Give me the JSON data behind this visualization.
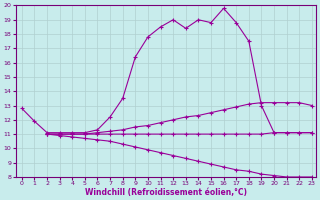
{
  "xlabel": "Windchill (Refroidissement éolien,°C)",
  "bg_color": "#c8ecec",
  "line_color": "#990099",
  "grid_color": "#b0d0d0",
  "xlim": [
    0,
    23
  ],
  "ylim": [
    8,
    20
  ],
  "xticks": [
    0,
    1,
    2,
    3,
    4,
    5,
    6,
    7,
    8,
    9,
    10,
    11,
    12,
    13,
    14,
    15,
    16,
    17,
    18,
    19,
    20,
    21,
    22,
    23
  ],
  "yticks": [
    8,
    9,
    10,
    11,
    12,
    13,
    14,
    15,
    16,
    17,
    18,
    19,
    20
  ],
  "curve1_x": [
    0,
    1,
    2,
    3,
    4,
    5,
    6,
    7,
    8,
    9,
    10,
    11,
    12,
    13,
    14,
    15,
    16,
    17,
    18,
    19,
    20,
    21,
    22,
    23
  ],
  "curve1_y": [
    12.8,
    11.9,
    11.1,
    11.1,
    11.1,
    11.1,
    11.3,
    12.2,
    13.5,
    16.4,
    17.8,
    18.5,
    19.0,
    18.4,
    19.0,
    18.8,
    19.8,
    18.8,
    17.5,
    13.0,
    11.1,
    11.1,
    11.1,
    11.1
  ],
  "curve2_x": [
    2,
    3,
    4,
    5,
    6,
    7,
    8,
    9,
    10,
    11,
    12,
    13,
    14,
    15,
    16,
    17,
    18,
    19,
    20,
    21,
    22,
    23
  ],
  "curve2_y": [
    11.0,
    11.0,
    11.0,
    11.0,
    11.1,
    11.2,
    11.3,
    11.5,
    11.6,
    11.8,
    12.0,
    12.2,
    12.3,
    12.5,
    12.7,
    12.9,
    13.1,
    13.2,
    13.2,
    13.2,
    13.2,
    13.0
  ],
  "curve3_x": [
    2,
    3,
    4,
    5,
    6,
    7,
    8,
    9,
    10,
    11,
    12,
    13,
    14,
    15,
    16,
    17,
    18,
    19,
    20,
    21,
    22,
    23
  ],
  "curve3_y": [
    11.0,
    11.0,
    11.0,
    11.0,
    11.0,
    11.0,
    11.0,
    11.0,
    11.0,
    11.0,
    11.0,
    11.0,
    11.0,
    11.0,
    11.0,
    11.0,
    11.0,
    11.0,
    11.1,
    11.1,
    11.1,
    11.1
  ],
  "curve4_x": [
    2,
    3,
    4,
    5,
    6,
    7,
    8,
    9,
    10,
    11,
    12,
    13,
    14,
    15,
    16,
    17,
    18,
    19,
    20,
    21,
    22,
    23
  ],
  "curve4_y": [
    11.0,
    10.9,
    10.8,
    10.7,
    10.6,
    10.5,
    10.3,
    10.1,
    9.9,
    9.7,
    9.5,
    9.3,
    9.1,
    8.9,
    8.7,
    8.5,
    8.4,
    8.2,
    8.1,
    8.0,
    8.0,
    8.0
  ]
}
